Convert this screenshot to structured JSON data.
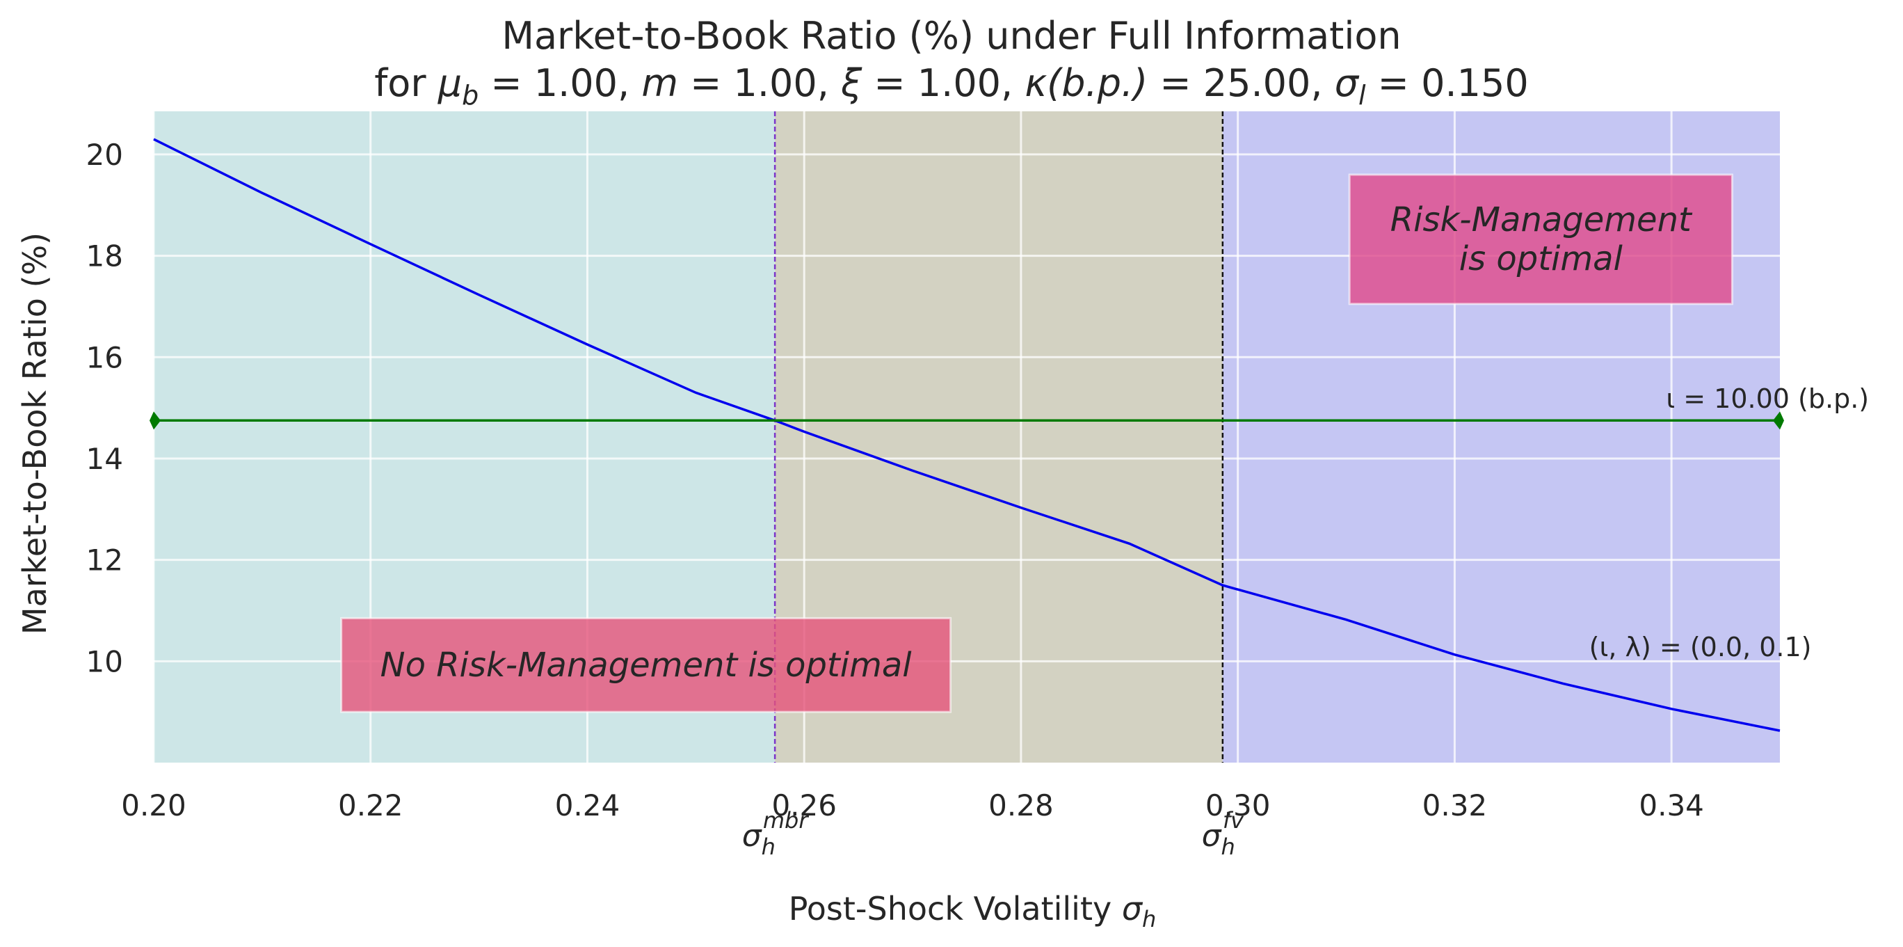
{
  "chart_data": {
    "type": "line",
    "title_line1": "Market-to-Book Ratio (%) under Full Information",
    "title_line2": "for μ_b = 1.00, m = 1.00, ξ = 1.00, κ(b.p.) = 25.00, σ_l = 0.150",
    "title_parts": [
      {
        "sym": "μ",
        "sub": "b",
        "val": "1.00"
      },
      {
        "sym": "m",
        "sub": "",
        "val": "1.00"
      },
      {
        "sym": "ξ",
        "sub": "",
        "val": "1.00"
      },
      {
        "sym": "κ(b.p.)",
        "sub": "",
        "val": "25.00"
      },
      {
        "sym": "σ",
        "sub": "l",
        "val": "0.150"
      }
    ],
    "xlabel": "Post-Shock Volatility σ_h",
    "ylabel": "Market-to-Book Ratio (%)",
    "xlim": [
      0.2,
      0.35
    ],
    "ylim": [
      8.0,
      20.85
    ],
    "grid": true,
    "xticks": [
      0.2,
      0.22,
      0.24,
      0.26,
      0.28,
      0.3,
      0.32,
      0.34
    ],
    "xtick_labels": [
      "0.20",
      "0.22",
      "0.24",
      "0.26",
      "0.28",
      "0.30",
      "0.32",
      "0.34"
    ],
    "yticks": [
      10,
      12,
      14,
      16,
      18,
      20
    ],
    "ytick_labels": [
      "10",
      "12",
      "14",
      "16",
      "18",
      "20"
    ],
    "regions": [
      {
        "x_from": 0.2,
        "x_to": 0.2573,
        "color": "#cde6e7"
      },
      {
        "x_from": 0.2573,
        "x_to": 0.2986,
        "color": "#d3d2c2"
      },
      {
        "x_from": 0.2986,
        "x_to": 0.35,
        "color": "#c5c6f3"
      }
    ],
    "vlines": [
      {
        "x": 0.2573,
        "color": "#7b35c9",
        "label": "σ_h^mbr",
        "sym": "σ",
        "sub": "h",
        "sup": "mbr"
      },
      {
        "x": 0.2986,
        "color": "#111111",
        "label": "σ_h^fv",
        "sym": "σ",
        "sub": "h",
        "sup": "fv"
      }
    ],
    "series": [
      {
        "name": "(ι, λ) = (0.0, 0.1)",
        "color": "#0000ee",
        "x": [
          0.2,
          0.21,
          0.22,
          0.23,
          0.24,
          0.25,
          0.2573,
          0.26,
          0.27,
          0.28,
          0.29,
          0.2986,
          0.31,
          0.32,
          0.33,
          0.34,
          0.35
        ],
        "y": [
          20.3,
          19.24,
          18.23,
          17.23,
          16.25,
          15.3,
          14.75,
          14.53,
          13.76,
          13.03,
          12.32,
          11.5,
          10.82,
          10.13,
          9.56,
          9.06,
          8.63
        ]
      },
      {
        "name": "ι = 10.00 (b.p.)",
        "color": "#007a00",
        "x": [
          0.2,
          0.35
        ],
        "y": [
          14.75,
          14.75
        ]
      }
    ],
    "series_labels": [
      {
        "text": "(ι, λ) = (0.0, 0.1)",
        "x": 0.3324,
        "y": 10.1,
        "color": "#262626"
      },
      {
        "text": "ι = 10.00 (b.p.)",
        "x": 0.3395,
        "y": 15.0,
        "color": "#262626"
      }
    ],
    "annotations": [
      {
        "text_lines": [
          "Risk-Management",
          "is optimal"
        ],
        "x_from": 0.3103,
        "x_to": 0.3456,
        "y_from": 17.05,
        "y_to": 19.6,
        "box_color": "#e0498a"
      },
      {
        "text_lines": [
          "No Risk-Management is optimal"
        ],
        "x_from": 0.2173,
        "x_to": 0.2735,
        "y_from": 9.0,
        "y_to": 10.85,
        "box_color": "#e6547a"
      }
    ]
  }
}
